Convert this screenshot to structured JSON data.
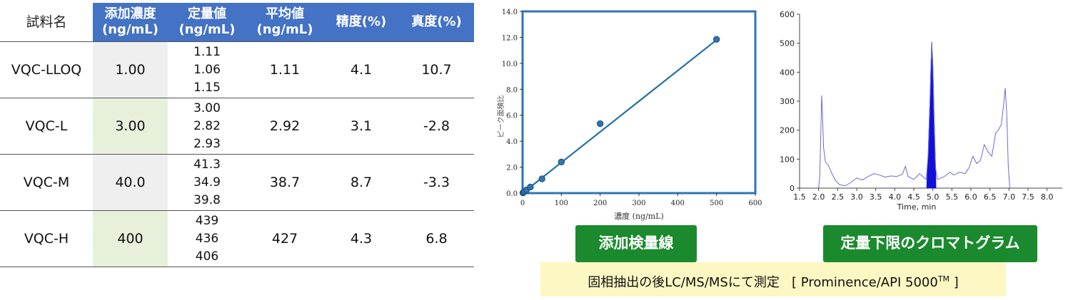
{
  "table": {
    "headers": [
      [
        "試料名"
      ],
      [
        "添加濃度",
        "(ng/mL)"
      ],
      [
        "定量値",
        "(ng/mL)"
      ],
      [
        "平均値",
        "(ng/mL)"
      ],
      [
        "精度(%)"
      ],
      [
        "真度(%)"
      ]
    ],
    "rows": [
      {
        "sample": "VQC-LLOQ",
        "spiked": "1.00",
        "replicates": [
          "1.11",
          "1.06",
          "1.15"
        ],
        "mean": "1.11",
        "precision": "4.1",
        "accuracy": "10.7"
      },
      {
        "sample": "VQC-L",
        "spiked": "3.00",
        "replicates": [
          "3.00",
          "2.82",
          "2.93"
        ],
        "mean": "2.92",
        "precision": "3.1",
        "accuracy": "-2.8"
      },
      {
        "sample": "VQC-M",
        "spiked": "40.0",
        "replicates": [
          "41.3",
          "34.9",
          "39.8"
        ],
        "mean": "38.7",
        "precision": "8.7",
        "accuracy": "-3.3"
      },
      {
        "sample": "VQC-H",
        "spiked": "400",
        "replicates": [
          "439",
          "436",
          "406"
        ],
        "mean": "427",
        "precision": "4.3",
        "accuracy": "6.8"
      }
    ]
  },
  "chart_data": [
    {
      "type": "scatter",
      "title": "",
      "xlabel": "濃度 (ng/mL)",
      "ylabel": "ピーク面積比",
      "xlim": [
        0,
        600
      ],
      "ylim": [
        0,
        14
      ],
      "xticks": [
        0,
        100,
        200,
        300,
        400,
        500,
        600
      ],
      "yticks": [
        "0.0",
        "2.0",
        "4.0",
        "6.0",
        "8.0",
        "10.0",
        "12.0",
        "14.0"
      ],
      "points": [
        [
          1,
          0.02
        ],
        [
          3,
          0.07
        ],
        [
          5,
          0.12
        ],
        [
          10,
          0.24
        ],
        [
          20,
          0.47
        ],
        [
          50,
          1.1
        ],
        [
          100,
          2.4
        ],
        [
          200,
          5.35
        ],
        [
          500,
          11.85
        ]
      ],
      "fit_line": [
        [
          0,
          0
        ],
        [
          500,
          11.8
        ]
      ],
      "grid": false,
      "colors": {
        "marker": "#2e74b5",
        "line": "#1f6fa8",
        "frame": "#2e74b5"
      }
    },
    {
      "type": "line",
      "title": "",
      "xlabel": "Time, min",
      "ylabel": "",
      "xlim": [
        1.5,
        8.4
      ],
      "ylim": [
        0,
        600
      ],
      "xticks": [
        "1.5",
        "2.0",
        "2.5",
        "3.0",
        "3.5",
        "4.0",
        "4.5",
        "5.0",
        "5.5",
        "6.0",
        "6.5",
        "7.0",
        "7.5",
        "8.0"
      ],
      "yticks": [
        "0",
        "100",
        "200",
        "300",
        "400",
        "500",
        "600"
      ],
      "trace": [
        [
          2.0,
          0
        ],
        [
          2.03,
          40
        ],
        [
          2.06,
          200
        ],
        [
          2.08,
          320
        ],
        [
          2.1,
          260
        ],
        [
          2.13,
          140
        ],
        [
          2.18,
          90
        ],
        [
          2.25,
          80
        ],
        [
          2.35,
          50
        ],
        [
          2.45,
          25
        ],
        [
          2.55,
          12
        ],
        [
          2.7,
          8
        ],
        [
          2.85,
          20
        ],
        [
          3.0,
          35
        ],
        [
          3.15,
          28
        ],
        [
          3.3,
          40
        ],
        [
          3.45,
          50
        ],
        [
          3.6,
          45
        ],
        [
          3.75,
          38
        ],
        [
          3.9,
          42
        ],
        [
          4.05,
          40
        ],
        [
          4.2,
          48
        ],
        [
          4.28,
          75
        ],
        [
          4.35,
          40
        ],
        [
          4.5,
          30
        ],
        [
          4.65,
          50
        ],
        [
          4.78,
          35
        ],
        [
          4.83,
          30
        ],
        [
          4.88,
          120
        ],
        [
          4.93,
          320
        ],
        [
          4.97,
          505
        ],
        [
          5.0,
          420
        ],
        [
          5.03,
          250
        ],
        [
          5.07,
          70
        ],
        [
          5.12,
          30
        ],
        [
          5.3,
          40
        ],
        [
          5.45,
          55
        ],
        [
          5.55,
          45
        ],
        [
          5.7,
          55
        ],
        [
          5.85,
          50
        ],
        [
          5.95,
          70
        ],
        [
          6.05,
          110
        ],
        [
          6.15,
          85
        ],
        [
          6.25,
          95
        ],
        [
          6.35,
          150
        ],
        [
          6.45,
          125
        ],
        [
          6.55,
          110
        ],
        [
          6.65,
          190
        ],
        [
          6.72,
          200
        ],
        [
          6.8,
          220
        ],
        [
          6.86,
          290
        ],
        [
          6.9,
          345
        ],
        [
          6.94,
          260
        ],
        [
          6.98,
          80
        ],
        [
          7.02,
          0
        ]
      ],
      "filled_peak": [
        4.84,
        5.08
      ],
      "grid": false,
      "colors": {
        "trace": "#6a6ad0",
        "peak": "#1010d8"
      }
    }
  ],
  "labels": {
    "calibration": "添加検量線",
    "chromatogram": "定量下限のクロマトグラム",
    "method_prefix": "固相抽出の後LC/MS/MSにて測定",
    "method_bracket_open": "[",
    "method_instrument": "Prominence/API 5000",
    "method_tm": "TM",
    "method_bracket_close": "]"
  }
}
